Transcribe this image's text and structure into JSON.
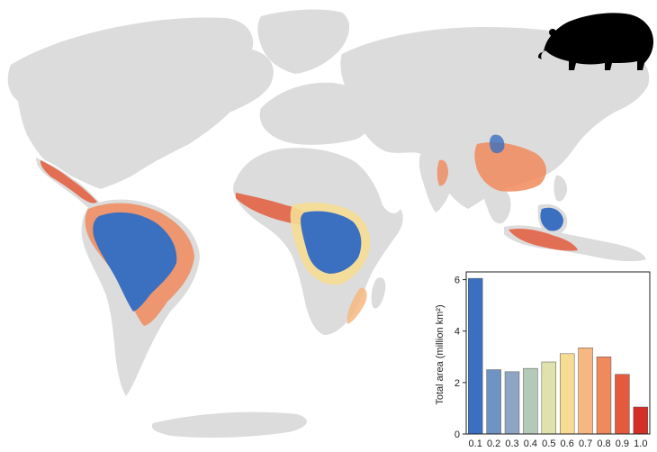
{
  "map": {
    "land_color": "#dcdcdc",
    "palette": [
      "#3b6fc0",
      "#6f93c2",
      "#9fb4c8",
      "#c9d6b4",
      "#e8e3a6",
      "#f6dd93",
      "#f6b880",
      "#f08a5c",
      "#e35a3c",
      "#d42e26"
    ],
    "icons": [
      "tapir-silhouette-icon"
    ]
  },
  "chart_data": {
    "type": "bar",
    "categories": [
      "0.1",
      "0.2",
      "0.3",
      "0.4",
      "0.5",
      "0.6",
      "0.7",
      "0.8",
      "0.9",
      "1.0"
    ],
    "values": [
      6.05,
      2.5,
      2.42,
      2.55,
      2.8,
      3.12,
      3.35,
      3.0,
      2.32,
      1.05
    ],
    "colors": [
      "#3b6fc0",
      "#6f93c2",
      "#8ea6c4",
      "#b5c9b9",
      "#dfe2ad",
      "#f6dd93",
      "#f6b880",
      "#f08a5c",
      "#e35a3c",
      "#d42e26"
    ],
    "title": "",
    "xlabel": "",
    "ylabel": "Total area (million km²)",
    "ylim": [
      0,
      6.3
    ],
    "yticks": [
      "0",
      "2",
      "4",
      "6"
    ],
    "grid": false
  }
}
